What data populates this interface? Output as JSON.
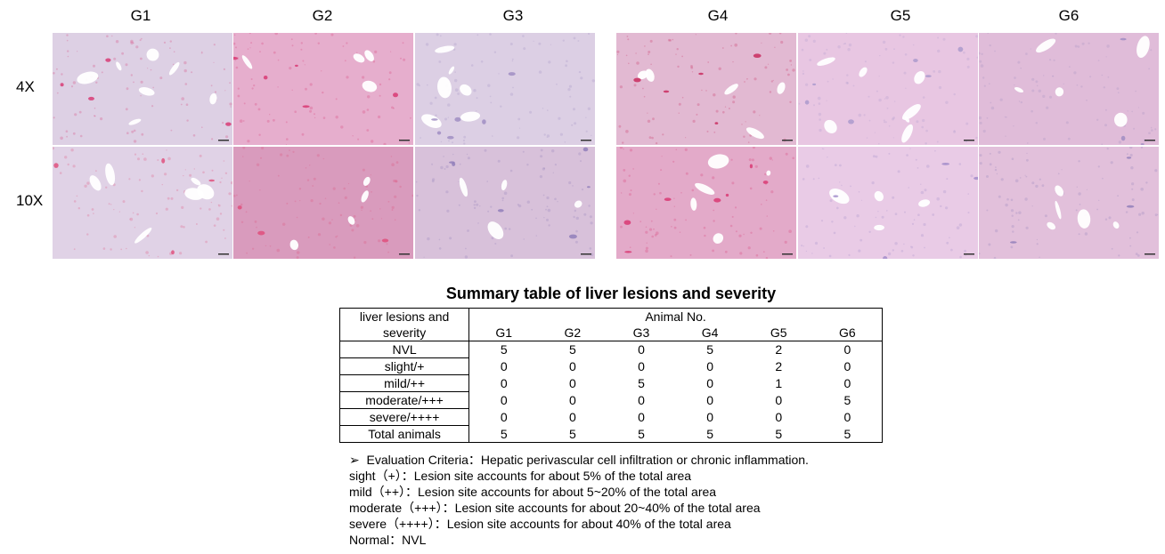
{
  "figure": {
    "columns": [
      "G1",
      "G2",
      "G3",
      "G4",
      "G5",
      "G6"
    ],
    "rows": [
      "4X",
      "10X"
    ],
    "panels": [
      {
        "group": "G1",
        "mag": "4X",
        "bg": "#ddd0e4",
        "accent": "#d8326e",
        "icon": "liver-histology-image"
      },
      {
        "group": "G2",
        "mag": "4X",
        "bg": "#e6aecd",
        "accent": "#d8326e",
        "icon": "liver-histology-image"
      },
      {
        "group": "G3",
        "mag": "4X",
        "bg": "#dccfe4",
        "accent": "#9c8ac0",
        "icon": "liver-histology-image"
      },
      {
        "group": "G4",
        "mag": "4X",
        "bg": "#e2b9d2",
        "accent": "#c82357",
        "icon": "liver-histology-image"
      },
      {
        "group": "G5",
        "mag": "4X",
        "bg": "#e8c6e2",
        "accent": "#a897cc",
        "icon": "liver-histology-image"
      },
      {
        "group": "G6",
        "mag": "4X",
        "bg": "#e0bcd9",
        "accent": "#9c8ac0",
        "icon": "liver-histology-image"
      },
      {
        "group": "G1",
        "mag": "10X",
        "bg": "#e0d2e6",
        "accent": "#e04a78",
        "icon": "liver-histology-image"
      },
      {
        "group": "G2",
        "mag": "10X",
        "bg": "#d99bbd",
        "accent": "#e04a78",
        "icon": "liver-histology-image"
      },
      {
        "group": "G3",
        "mag": "10X",
        "bg": "#d8c1da",
        "accent": "#8d7ab8",
        "icon": "liver-histology-image"
      },
      {
        "group": "G4",
        "mag": "10X",
        "bg": "#e3aac9",
        "accent": "#d8326e",
        "icon": "liver-histology-image"
      },
      {
        "group": "G5",
        "mag": "10X",
        "bg": "#e9cbe6",
        "accent": "#9d88c8",
        "icon": "liver-histology-image"
      },
      {
        "group": "G6",
        "mag": "10X",
        "bg": "#e2c0db",
        "accent": "#8d7ab8",
        "icon": "liver-histology-image"
      }
    ]
  },
  "table": {
    "title": "Summary table of liver lesions and severity",
    "label_header_line1": "liver lesions and",
    "label_header_line2": "severity",
    "group_header": "Animal No.",
    "groups": [
      "G1",
      "G2",
      "G3",
      "G4",
      "G5",
      "G6"
    ],
    "rows": [
      {
        "label": "NVL",
        "values": [
          "5",
          "5",
          "0",
          "5",
          "2",
          "0"
        ]
      },
      {
        "label": "slight/+",
        "values": [
          "0",
          "0",
          "0",
          "0",
          "2",
          "0"
        ]
      },
      {
        "label": "mild/++",
        "values": [
          "0",
          "0",
          "5",
          "0",
          "1",
          "0"
        ]
      },
      {
        "label": "moderate/+++",
        "values": [
          "0",
          "0",
          "0",
          "0",
          "0",
          "5"
        ]
      },
      {
        "label": "severe/++++",
        "values": [
          "0",
          "0",
          "0",
          "0",
          "0",
          "0"
        ]
      },
      {
        "label": "Total animals",
        "values": [
          "5",
          "5",
          "5",
          "5",
          "5",
          "5"
        ]
      }
    ]
  },
  "criteria": {
    "bullet": "➢",
    "line1": "Evaluation Criteria：Hepatic perivascular cell infiltration or chronic inflammation.",
    "line2": "sight（+）：Lesion site accounts for about 5% of the total area",
    "line3": "mild（++）：Lesion site accounts for about 5~20% of the total area",
    "line4": "moderate（+++）：Lesion site accounts for about 20~40% of the total area",
    "line5": "severe（++++）：Lesion site accounts for about 40% of the total area",
    "line6": "Normal：NVL"
  }
}
